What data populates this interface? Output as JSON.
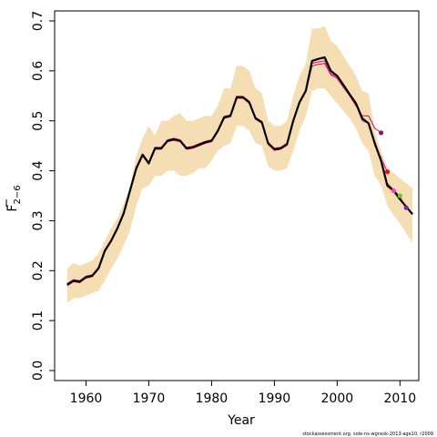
{
  "chart_data": {
    "type": "line",
    "title": "",
    "xlabel": "Year",
    "ylabel_main": "F",
    "ylabel_sub": "2−6",
    "xlim": [
      1955,
      2013
    ],
    "ylim": [
      -0.02,
      0.72
    ],
    "xticks": [
      1960,
      1970,
      1980,
      1990,
      2000,
      2010
    ],
    "yticks": [
      0.0,
      0.1,
      0.2,
      0.3,
      0.4,
      0.5,
      0.6,
      0.7
    ],
    "ytick_labels": [
      "0.0",
      "0.1",
      "0.2",
      "0.3",
      "0.4",
      "0.5",
      "0.6",
      "0.7"
    ],
    "grid": false,
    "colors": {
      "band": "#f5deb3",
      "main_line": "#000000",
      "retro_lines": [
        "#e0005a",
        "#c71585",
        "#ff69b4",
        "#dc143c"
      ],
      "retro_points": [
        "#8b1a6b",
        "#e81010",
        "#ff44bb",
        "#66cc22",
        "#7b2aa0"
      ]
    },
    "band": {
      "x": [
        1957,
        1958,
        1959,
        1960,
        1961,
        1962,
        1963,
        1964,
        1965,
        1966,
        1967,
        1968,
        1969,
        1970,
        1971,
        1972,
        1973,
        1974,
        1975,
        1976,
        1977,
        1978,
        1979,
        1980,
        1981,
        1982,
        1983,
        1984,
        1985,
        1986,
        1987,
        1988,
        1989,
        1990,
        1991,
        1992,
        1993,
        1994,
        1995,
        1996,
        1997,
        1998,
        1999,
        2000,
        2001,
        2002,
        2003,
        2004,
        2005,
        2006,
        2007,
        2008,
        2009,
        2010,
        2011,
        2012
      ],
      "lower": [
        0.135,
        0.145,
        0.145,
        0.15,
        0.155,
        0.16,
        0.18,
        0.205,
        0.225,
        0.25,
        0.28,
        0.33,
        0.365,
        0.37,
        0.39,
        0.39,
        0.4,
        0.4,
        0.39,
        0.39,
        0.395,
        0.405,
        0.405,
        0.42,
        0.44,
        0.45,
        0.455,
        0.49,
        0.49,
        0.48,
        0.455,
        0.45,
        0.41,
        0.4,
        0.4,
        0.405,
        0.44,
        0.48,
        0.51,
        0.56,
        0.565,
        0.565,
        0.55,
        0.535,
        0.52,
        0.505,
        0.485,
        0.455,
        0.44,
        0.39,
        0.37,
        0.33,
        0.31,
        0.295,
        0.275,
        0.255
      ],
      "upper": [
        0.205,
        0.215,
        0.21,
        0.215,
        0.22,
        0.235,
        0.26,
        0.285,
        0.305,
        0.335,
        0.37,
        0.43,
        0.465,
        0.49,
        0.47,
        0.5,
        0.5,
        0.51,
        0.515,
        0.5,
        0.5,
        0.505,
        0.51,
        0.51,
        0.53,
        0.565,
        0.565,
        0.61,
        0.61,
        0.6,
        0.565,
        0.555,
        0.5,
        0.49,
        0.49,
        0.5,
        0.55,
        0.59,
        0.615,
        0.685,
        0.685,
        0.69,
        0.66,
        0.65,
        0.63,
        0.61,
        0.59,
        0.56,
        0.555,
        0.48,
        0.44,
        0.405,
        0.395,
        0.385,
        0.375,
        0.365
      ]
    },
    "series": [
      {
        "x": [
          1957,
          1958,
          1959,
          1960,
          1961,
          1962,
          1963,
          1964,
          1965,
          1966,
          1967,
          1968,
          1969,
          1970,
          1971,
          1972,
          1973,
          1974,
          1975,
          1976,
          1977,
          1978,
          1979,
          1980,
          1981,
          1982,
          1983,
          1984,
          1985,
          1986,
          1987,
          1988,
          1989,
          1990,
          1991,
          1992,
          1993,
          1994,
          1995,
          1996,
          1997,
          1998,
          1999,
          2000,
          2001,
          2002,
          2003,
          2004,
          2005,
          2006,
          2007,
          2008,
          2009,
          2010,
          2011,
          2012
        ],
        "values": [
          0.172,
          0.18,
          0.178,
          0.187,
          0.19,
          0.205,
          0.24,
          0.26,
          0.285,
          0.315,
          0.36,
          0.405,
          0.432,
          0.415,
          0.445,
          0.445,
          0.46,
          0.463,
          0.46,
          0.445,
          0.447,
          0.452,
          0.457,
          0.46,
          0.48,
          0.507,
          0.51,
          0.547,
          0.547,
          0.537,
          0.505,
          0.497,
          0.455,
          0.443,
          0.445,
          0.453,
          0.5,
          0.537,
          0.56,
          0.62,
          0.624,
          0.627,
          0.6,
          0.59,
          0.572,
          0.553,
          0.535,
          0.505,
          0.495,
          0.455,
          0.42,
          0.37,
          0.36,
          0.343,
          0.328,
          0.313
        ]
      },
      {
        "x": [
          1957,
          1958,
          1959,
          1960,
          1961,
          1962,
          1963,
          1964,
          1965,
          1966,
          1967,
          1968,
          1969,
          1970,
          1971,
          1972,
          1973,
          1974,
          1975,
          1976,
          1977,
          1978,
          1979,
          1980,
          1981,
          1982,
          1983,
          1984,
          1985,
          1986,
          1987,
          1988,
          1989,
          1990,
          1991,
          1992,
          1993,
          1994,
          1995,
          1996,
          1997,
          1998,
          1999,
          2000,
          2001,
          2002,
          2003,
          2004,
          2005,
          2006,
          2007
        ],
        "values": [
          0.17,
          0.178,
          0.176,
          0.185,
          0.188,
          0.203,
          0.238,
          0.258,
          0.283,
          0.313,
          0.358,
          0.402,
          0.43,
          0.413,
          0.443,
          0.443,
          0.458,
          0.461,
          0.458,
          0.443,
          0.445,
          0.45,
          0.455,
          0.458,
          0.478,
          0.505,
          0.508,
          0.545,
          0.545,
          0.535,
          0.503,
          0.495,
          0.453,
          0.441,
          0.443,
          0.451,
          0.498,
          0.535,
          0.558,
          0.61,
          0.613,
          0.615,
          0.592,
          0.585,
          0.567,
          0.55,
          0.53,
          0.51,
          0.51,
          0.485,
          0.476
        ]
      },
      {
        "x": [
          1957,
          1958,
          1959,
          1960,
          1961,
          1962,
          1963,
          1964,
          1965,
          1966,
          1967,
          1968,
          1969,
          1970,
          1971,
          1972,
          1973,
          1974,
          1975,
          1976,
          1977,
          1978,
          1979,
          1980,
          1981,
          1982,
          1983,
          1984,
          1985,
          1986,
          1987,
          1988,
          1989,
          1990,
          1991,
          1992,
          1993,
          1994,
          1995,
          1996,
          1997,
          1998,
          1999,
          2000,
          2001,
          2002,
          2003,
          2004,
          2005,
          2006,
          2007,
          2008
        ],
        "values": [
          0.174,
          0.182,
          0.18,
          0.189,
          0.192,
          0.207,
          0.242,
          0.262,
          0.287,
          0.317,
          0.362,
          0.407,
          0.434,
          0.417,
          0.447,
          0.447,
          0.462,
          0.465,
          0.462,
          0.447,
          0.449,
          0.454,
          0.459,
          0.462,
          0.482,
          0.509,
          0.512,
          0.549,
          0.549,
          0.539,
          0.507,
          0.499,
          0.457,
          0.445,
          0.447,
          0.455,
          0.502,
          0.539,
          0.562,
          0.615,
          0.618,
          0.62,
          0.595,
          0.588,
          0.57,
          0.552,
          0.533,
          0.5,
          0.495,
          0.45,
          0.425,
          0.398
        ]
      },
      {
        "x": [
          2007,
          2008,
          2009,
          2010
        ],
        "values": [
          0.43,
          0.372,
          0.358,
          0.35
        ]
      },
      {
        "x": [
          2008,
          2009,
          2010,
          2011
        ],
        "values": [
          0.375,
          0.362,
          0.348,
          0.326
        ]
      }
    ],
    "endpoints": [
      {
        "x": 2007,
        "y": 0.476
      },
      {
        "x": 2008,
        "y": 0.398
      },
      {
        "x": 2009,
        "y": 0.36
      },
      {
        "x": 2010,
        "y": 0.35
      },
      {
        "x": 2011,
        "y": 0.326
      }
    ]
  },
  "footnote": "stockassessment.org, sole-ns-wgnssk-2013-age10, r2009"
}
